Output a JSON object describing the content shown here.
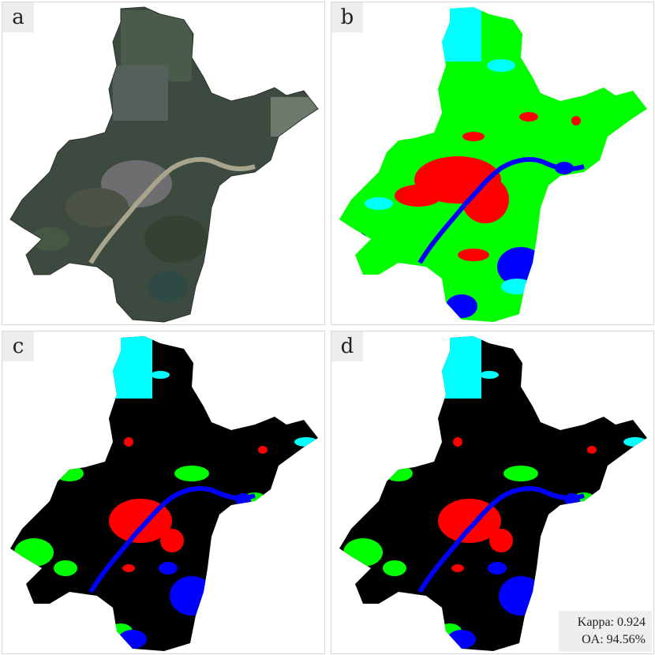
{
  "panels": [
    {
      "id": "a",
      "label": "a",
      "kind": "satellite-image"
    },
    {
      "id": "b",
      "label": "b",
      "kind": "classification-map"
    },
    {
      "id": "c",
      "label": "c",
      "kind": "change-map"
    },
    {
      "id": "d",
      "label": "d",
      "kind": "change-map"
    }
  ],
  "metrics": {
    "kappa": "Kappa: 0.924",
    "oa": "OA: 94.56%"
  },
  "colors": {
    "vegetation": "#00ff00",
    "built_up": "#ff0000",
    "water": "#0000ff",
    "bare": "#00ffff",
    "background": "#000000",
    "satellite_base": "#3d4a3f"
  }
}
